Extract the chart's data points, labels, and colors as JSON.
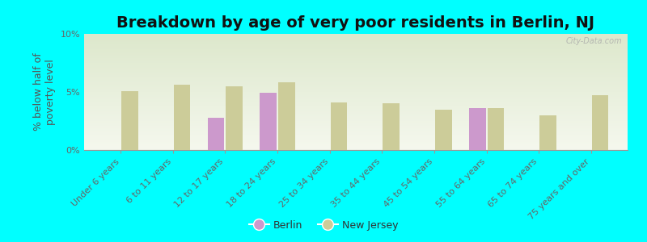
{
  "title": "Breakdown by age of very poor residents in Berlin, NJ",
  "ylabel": "% below half of\npoverty level",
  "categories": [
    "Under 6 years",
    "6 to 11 years",
    "12 to 17 years",
    "18 to 24 years",
    "25 to 34 years",
    "35 to 44 years",
    "45 to 54 years",
    "55 to 64 years",
    "65 to 74 years",
    "75 years and over"
  ],
  "berlin_values": [
    null,
    null,
    2.8,
    4.9,
    null,
    null,
    null,
    3.6,
    null,
    null
  ],
  "nj_values": [
    5.1,
    5.6,
    5.5,
    5.8,
    4.1,
    4.0,
    3.5,
    3.6,
    3.0,
    4.7
  ],
  "berlin_color": "#cc99cc",
  "nj_color": "#cccc99",
  "background_color": "#00ffff",
  "plot_bg_top": "#dde8cc",
  "plot_bg_bottom": "#f5f8ee",
  "ylim": [
    0,
    10
  ],
  "yticks": [
    0,
    5,
    10
  ],
  "ytick_labels": [
    "0%",
    "5%",
    "10%"
  ],
  "bar_width": 0.35,
  "title_fontsize": 14,
  "axis_label_fontsize": 9,
  "tick_fontsize": 8,
  "legend_labels": [
    "Berlin",
    "New Jersey"
  ],
  "watermark": "City-Data.com"
}
